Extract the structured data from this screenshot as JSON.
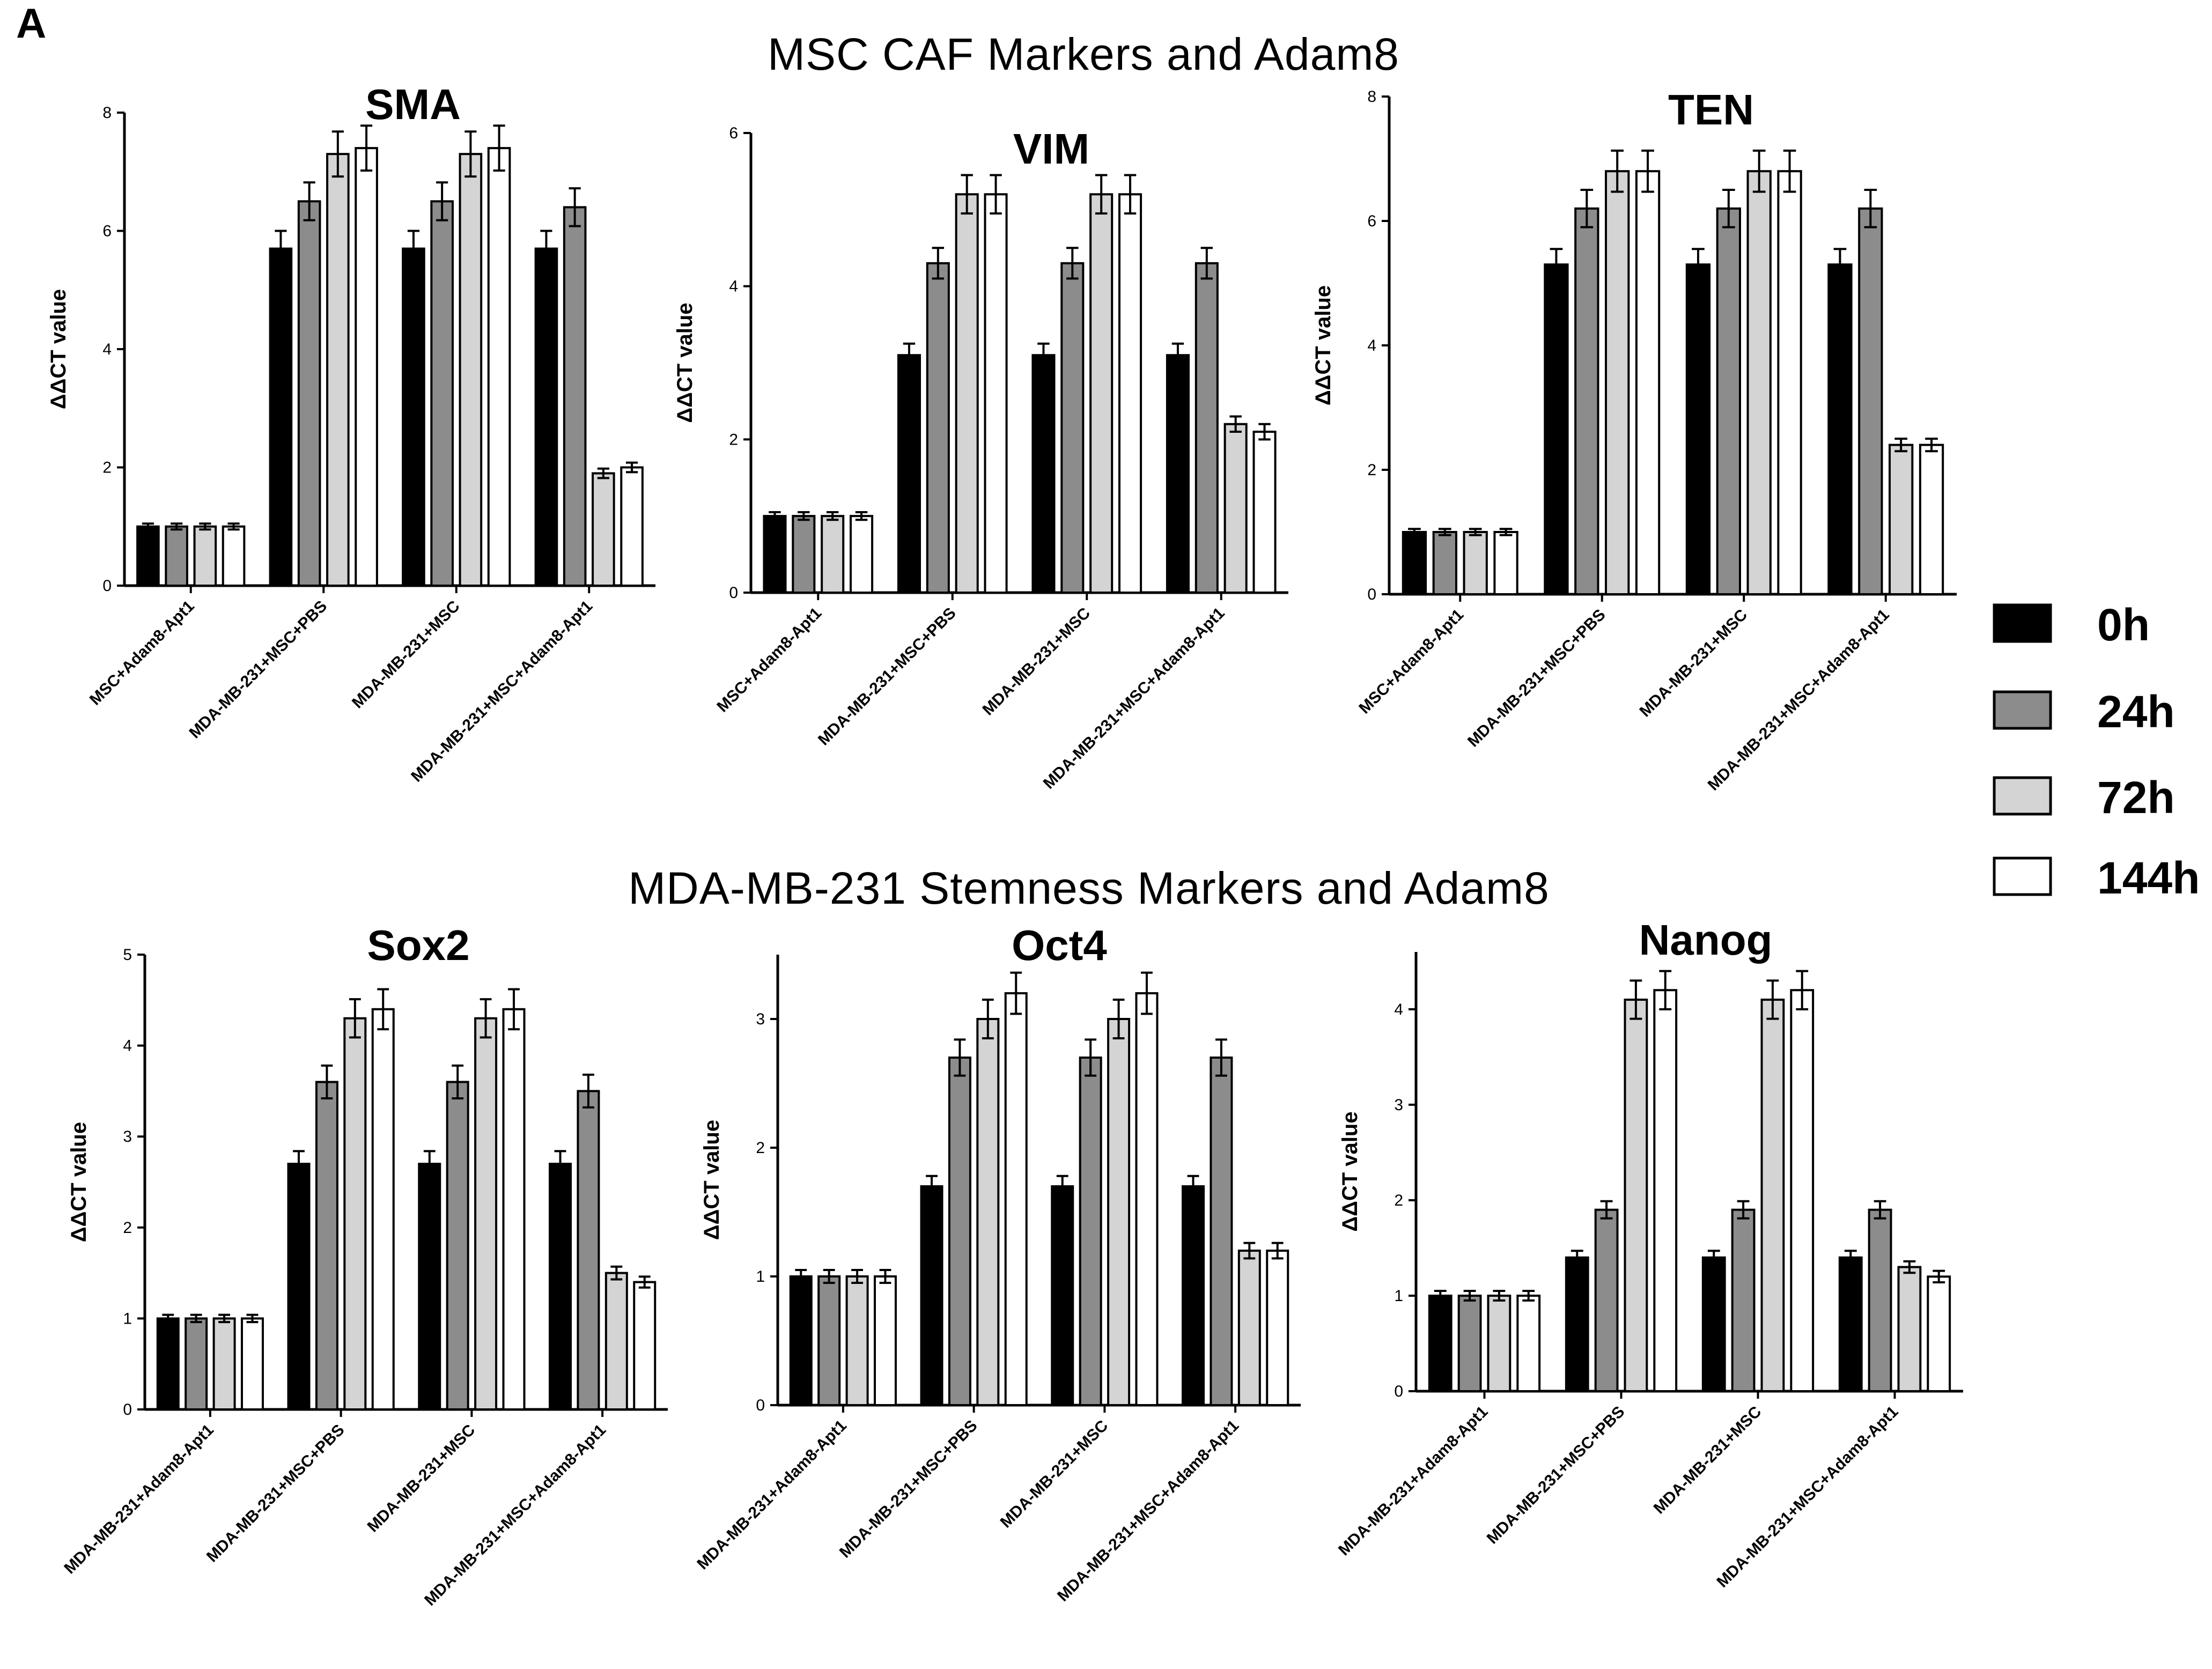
{
  "panel_label": "A",
  "sections": {
    "top_title": "MSC CAF Markers and Adam8",
    "bottom_title": "MDA-MB-231 Stemness Markers and Adam8"
  },
  "legend": {
    "items": [
      {
        "label": "0h",
        "color": "#000000"
      },
      {
        "label": "24h",
        "color": "#8c8c8c"
      },
      {
        "label": "72h",
        "color": "#d4d4d4"
      },
      {
        "label": "144h",
        "color": "#ffffff"
      }
    ]
  },
  "chart_data": [
    {
      "type": "bar",
      "title": "SMA",
      "ylabel": "ΔΔCT value",
      "ylim": [
        0,
        8
      ],
      "yticks": [
        0,
        2,
        4,
        6,
        8
      ],
      "categories": [
        "MSC+Adam8-Apt1",
        "MDA-MB-231+MSC+PBS",
        "MDA-MB-231+MSC",
        "MDA-MB-231+MSC+Adam8-Apt1"
      ],
      "series": [
        {
          "name": "0h",
          "values": [
            1.0,
            5.7,
            5.7,
            5.7
          ],
          "errors": [
            0.05,
            0.3,
            0.3,
            0.3
          ]
        },
        {
          "name": "24h",
          "values": [
            1.0,
            6.5,
            6.5,
            6.4
          ],
          "errors": [
            0.05,
            0.32,
            0.32,
            0.32
          ]
        },
        {
          "name": "72h",
          "values": [
            1.0,
            7.3,
            7.3,
            1.9
          ],
          "errors": [
            0.05,
            0.38,
            0.38,
            0.08
          ]
        },
        {
          "name": "144h",
          "values": [
            1.0,
            7.4,
            7.4,
            2.0
          ],
          "errors": [
            0.05,
            0.38,
            0.38,
            0.08
          ]
        }
      ]
    },
    {
      "type": "bar",
      "title": "VIM",
      "ylabel": "ΔΔCT value",
      "ylim": [
        0,
        6
      ],
      "yticks": [
        0,
        2,
        4,
        6
      ],
      "categories": [
        "MSC+Adam8-Apt1",
        "MDA-MB-231+MSC+PBS",
        "MDA-MB-231+MSC",
        "MDA-MB-231+MSC+Adam8-Apt1"
      ],
      "series": [
        {
          "name": "0h",
          "values": [
            1.0,
            3.1,
            3.1,
            3.1
          ],
          "errors": [
            0.05,
            0.15,
            0.15,
            0.15
          ]
        },
        {
          "name": "24h",
          "values": [
            1.0,
            4.3,
            4.3,
            4.3
          ],
          "errors": [
            0.05,
            0.2,
            0.2,
            0.2
          ]
        },
        {
          "name": "72h",
          "values": [
            1.0,
            5.2,
            5.2,
            2.2
          ],
          "errors": [
            0.05,
            0.25,
            0.25,
            0.1
          ]
        },
        {
          "name": "144h",
          "values": [
            1.0,
            5.2,
            5.2,
            2.1
          ],
          "errors": [
            0.05,
            0.25,
            0.25,
            0.1
          ]
        }
      ]
    },
    {
      "type": "bar",
      "title": "TEN",
      "ylabel": "ΔΔCT value",
      "ylim": [
        0,
        8
      ],
      "yticks": [
        0,
        2,
        4,
        6,
        8
      ],
      "categories": [
        "MSC+Adam8-Apt1",
        "MDA-MB-231+MSC+PBS",
        "MDA-MB-231+MSC",
        "MDA-MB-231+MSC+Adam8-Apt1"
      ],
      "series": [
        {
          "name": "0h",
          "values": [
            1.0,
            5.3,
            5.3,
            5.3
          ],
          "errors": [
            0.05,
            0.25,
            0.25,
            0.25
          ]
        },
        {
          "name": "24h",
          "values": [
            1.0,
            6.2,
            6.2,
            6.2
          ],
          "errors": [
            0.05,
            0.3,
            0.3,
            0.3
          ]
        },
        {
          "name": "72h",
          "values": [
            1.0,
            6.8,
            6.8,
            2.4
          ],
          "errors": [
            0.05,
            0.33,
            0.33,
            0.1
          ]
        },
        {
          "name": "144h",
          "values": [
            1.0,
            6.8,
            6.8,
            2.4
          ],
          "errors": [
            0.05,
            0.33,
            0.33,
            0.1
          ]
        }
      ]
    },
    {
      "type": "bar",
      "title": "Sox2",
      "ylabel": "ΔΔCT value",
      "ylim": [
        0,
        5
      ],
      "yticks": [
        0,
        1,
        2,
        3,
        4,
        5
      ],
      "categories": [
        "MDA-MB-231+Adam8-Apt1",
        "MDA-MB-231+MSC+PBS",
        "MDA-MB-231+MSC",
        "MDA-MB-231+MSC+Adam8-Apt1"
      ],
      "series": [
        {
          "name": "0h",
          "values": [
            1.0,
            2.7,
            2.7,
            2.7
          ],
          "errors": [
            0.04,
            0.14,
            0.14,
            0.14
          ]
        },
        {
          "name": "24h",
          "values": [
            1.0,
            3.6,
            3.6,
            3.5
          ],
          "errors": [
            0.04,
            0.18,
            0.18,
            0.18
          ]
        },
        {
          "name": "72h",
          "values": [
            1.0,
            4.3,
            4.3,
            1.5
          ],
          "errors": [
            0.04,
            0.21,
            0.21,
            0.07
          ]
        },
        {
          "name": "144h",
          "values": [
            1.0,
            4.4,
            4.4,
            1.4
          ],
          "errors": [
            0.04,
            0.22,
            0.22,
            0.06
          ]
        }
      ]
    },
    {
      "type": "bar",
      "title": "Oct4",
      "ylabel": "ΔΔCT value",
      "ylim": [
        0,
        3.5
      ],
      "yticks": [
        0,
        1,
        2,
        3
      ],
      "categories": [
        "MDA-MB-231+Adam8-Apt1",
        "MDA-MB-231+MSC+PBS",
        "MDA-MB-231+MSC",
        "MDA-MB-231+MSC+Adam8-Apt1"
      ],
      "series": [
        {
          "name": "0h",
          "values": [
            1.0,
            1.7,
            1.7,
            1.7
          ],
          "errors": [
            0.05,
            0.08,
            0.08,
            0.08
          ]
        },
        {
          "name": "24h",
          "values": [
            1.0,
            2.7,
            2.7,
            2.7
          ],
          "errors": [
            0.05,
            0.14,
            0.14,
            0.14
          ]
        },
        {
          "name": "72h",
          "values": [
            1.0,
            3.0,
            3.0,
            1.2
          ],
          "errors": [
            0.05,
            0.15,
            0.15,
            0.06
          ]
        },
        {
          "name": "144h",
          "values": [
            1.0,
            3.2,
            3.2,
            1.2
          ],
          "errors": [
            0.05,
            0.16,
            0.16,
            0.06
          ]
        }
      ]
    },
    {
      "type": "bar",
      "title": "Nanog",
      "ylabel": "ΔΔCT value",
      "ylim": [
        0,
        4.6
      ],
      "yticks": [
        0,
        1,
        2,
        3,
        4
      ],
      "categories": [
        "MDA-MB-231+Adam8-Apt1",
        "MDA-MB-231+MSC+PBS",
        "MDA-MB-231+MSC",
        "MDA-MB-231+MSC+Adam8-Apt1"
      ],
      "series": [
        {
          "name": "0h",
          "values": [
            1.0,
            1.4,
            1.4,
            1.4
          ],
          "errors": [
            0.05,
            0.07,
            0.07,
            0.07
          ]
        },
        {
          "name": "24h",
          "values": [
            1.0,
            1.9,
            1.9,
            1.9
          ],
          "errors": [
            0.05,
            0.09,
            0.09,
            0.09
          ]
        },
        {
          "name": "72h",
          "values": [
            1.0,
            4.1,
            4.1,
            1.3
          ],
          "errors": [
            0.05,
            0.2,
            0.2,
            0.06
          ]
        },
        {
          "name": "144h",
          "values": [
            1.0,
            4.2,
            4.2,
            1.2
          ],
          "errors": [
            0.05,
            0.2,
            0.2,
            0.06
          ]
        }
      ]
    }
  ]
}
